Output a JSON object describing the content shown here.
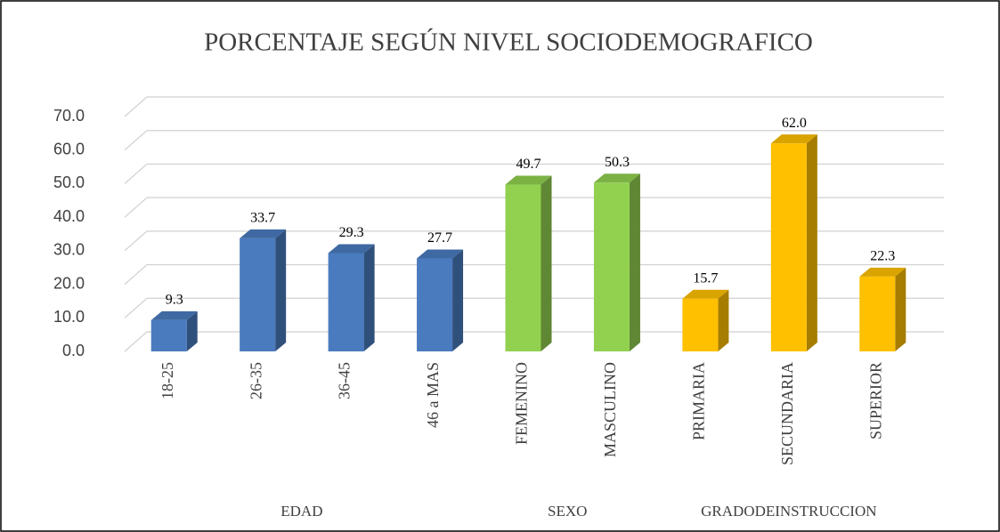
{
  "chart_data": {
    "type": "bar3d",
    "title": "PORCENTAJE SEGÚN NIVEL SOCIODEMOGRAFICO",
    "categories": [
      "18-25",
      "26-35",
      "36-45",
      "46 a MAS",
      "FEMENINO",
      "MASCULINO",
      "PRIMARIA",
      "SECUNDARIA",
      "SUPERIOR"
    ],
    "series": [
      {
        "name": "EDAD",
        "color": "#4a7bbf",
        "values": [
          9.3,
          33.7,
          29.3,
          27.7,
          null,
          null,
          null,
          null,
          null
        ],
        "value_labels": [
          "9.3",
          "33.7",
          "29.3",
          "27.7",
          null,
          null,
          null,
          null,
          null
        ]
      },
      {
        "name": "SEXO",
        "color": "#92d050",
        "values": [
          null,
          null,
          null,
          null,
          49.7,
          50.3,
          null,
          null,
          null
        ],
        "value_labels": [
          null,
          null,
          null,
          null,
          "49.7",
          "50.3",
          null,
          null,
          null
        ]
      },
      {
        "name": "GRADODEINSTRUCCION",
        "color": "#ffc000",
        "values": [
          null,
          null,
          null,
          null,
          null,
          null,
          15.7,
          62,
          22.3
        ],
        "value_labels": [
          null,
          null,
          null,
          null,
          null,
          null,
          "15.7",
          "62.0",
          "22.3"
        ]
      }
    ],
    "ylim": [
      0,
      70
    ],
    "yticks": [
      {
        "value": 0,
        "label": "0.0"
      },
      {
        "value": 10,
        "label": "10.0"
      },
      {
        "value": 20,
        "label": "20.0"
      },
      {
        "value": 30,
        "label": "30.0"
      },
      {
        "value": 40,
        "label": "40.0"
      },
      {
        "value": 50,
        "label": "50.0"
      },
      {
        "value": 60,
        "label": "60.0"
      },
      {
        "value": 70,
        "label": "70.0"
      }
    ],
    "grid": true
  }
}
